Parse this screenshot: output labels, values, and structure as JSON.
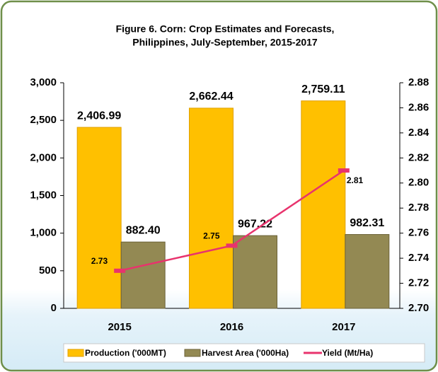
{
  "chart_data": {
    "type": "bar",
    "title": [
      "Figure 6. Corn: Crop Estimates and Forecasts,",
      "Philippines, July-September, 2015-2017"
    ],
    "categories": [
      "2015",
      "2016",
      "2017"
    ],
    "series": [
      {
        "name": "Production ('000MT)",
        "type": "bar",
        "color": "#FFC000",
        "values": [
          2406.99,
          2662.44,
          2759.11
        ],
        "value_labels": [
          "2,406.99",
          "2,662.44",
          "2,759.11"
        ]
      },
      {
        "name": "Harvest Area ('000Ha)",
        "type": "bar",
        "color": "#938953",
        "values": [
          882.4,
          967.22,
          982.31
        ],
        "value_labels": [
          "882.40",
          "967.22",
          "982.31"
        ]
      },
      {
        "name": "Yield (Mt/Ha)",
        "type": "line",
        "axis": "y2",
        "color": "#E8336D",
        "values": [
          2.73,
          2.75,
          2.81
        ]
      }
    ],
    "ylim": [
      0,
      3000
    ],
    "yticks": [
      0,
      500,
      {
        "value": 1000,
        "label": "1,000"
      },
      {
        "value": 1500,
        "label": "1,500"
      },
      {
        "value": 2000,
        "label": "2,000"
      },
      {
        "value": 2500,
        "label": "2,500"
      },
      {
        "value": 3000,
        "label": "3,000"
      }
    ],
    "y2lim": [
      2.7,
      2.88
    ],
    "y2ticks": [
      {
        "value": 2.7,
        "label": "2.70"
      },
      2.72,
      2.74,
      2.76,
      2.78,
      {
        "value": 2.8,
        "label": "2.80"
      },
      2.82,
      2.84,
      2.86,
      2.88
    ],
    "legend": "bottom"
  }
}
